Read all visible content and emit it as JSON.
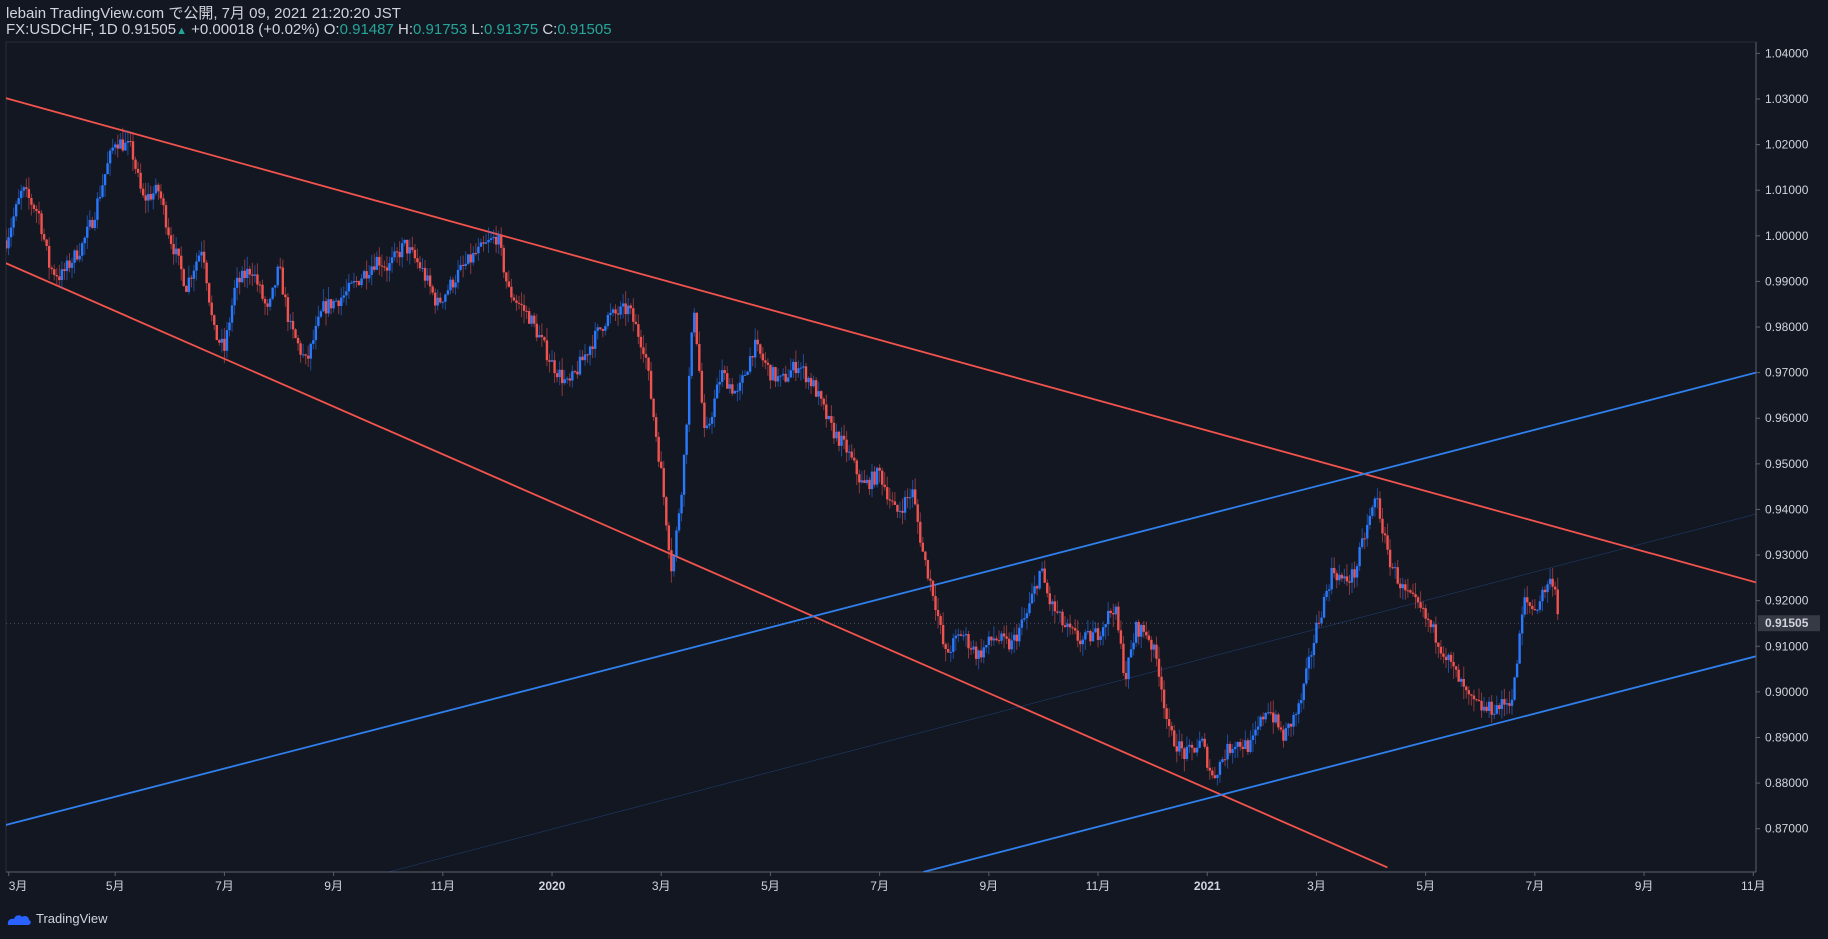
{
  "header": {
    "published": "lebain TradingView.com で公開, 7月 09, 2021 21:20:20 JST",
    "symbol": "FX:USDCHF, 1D",
    "price": "0.91505",
    "arrow": "▲",
    "change": "+0.00018 (+0.02%)",
    "o_label": "O:",
    "o_value": "0.91487",
    "h_label": "H:",
    "h_value": "0.91753",
    "l_label": "L:",
    "l_value": "0.91375",
    "c_label": "C:",
    "c_value": "0.91505"
  },
  "footer": {
    "brand": "TradingView",
    "logo_icon": "tradingview-logo-icon"
  },
  "colors": {
    "background": "#131722",
    "up": "#2979ff",
    "down": "#ef5350",
    "red_line": "#f2544d",
    "blue_line": "#2f80ed",
    "price_tag": "#363a45"
  },
  "chart_data": {
    "type": "candlestick",
    "symbol": "FX:USDCHF",
    "interval": "1D",
    "last_price": 0.91505,
    "price_label": "0.91505",
    "ylim": [
      0.8605,
      1.0425
    ],
    "y_ticks": [
      {
        "value": 1.04,
        "label": "1.04000"
      },
      {
        "value": 1.03,
        "label": "1.03000"
      },
      {
        "value": 1.02,
        "label": "1.02000"
      },
      {
        "value": 1.01,
        "label": "1.01000"
      },
      {
        "value": 1.0,
        "label": "1.00000"
      },
      {
        "value": 0.99,
        "label": "0.99000"
      },
      {
        "value": 0.98,
        "label": "0.98000"
      },
      {
        "value": 0.97,
        "label": "0.97000"
      },
      {
        "value": 0.96,
        "label": "0.96000"
      },
      {
        "value": 0.95,
        "label": "0.95000"
      },
      {
        "value": 0.94,
        "label": "0.94000"
      },
      {
        "value": 0.93,
        "label": "0.93000"
      },
      {
        "value": 0.92,
        "label": "0.92000"
      },
      {
        "value": 0.91,
        "label": "0.91000"
      },
      {
        "value": 0.9,
        "label": "0.90000"
      },
      {
        "value": 0.89,
        "label": "0.89000"
      },
      {
        "value": 0.88,
        "label": "0.88000"
      },
      {
        "value": 0.87,
        "label": "0.87000"
      }
    ],
    "time_range": [
      0,
      32.05
    ],
    "x_ticks": [
      {
        "t": 0.05,
        "label": "3月",
        "bold": false
      },
      {
        "t": 2,
        "label": "5月",
        "bold": false
      },
      {
        "t": 4,
        "label": "7月",
        "bold": false
      },
      {
        "t": 6,
        "label": "9月",
        "bold": false
      },
      {
        "t": 8,
        "label": "11月",
        "bold": false
      },
      {
        "t": 10,
        "label": "2020",
        "bold": true
      },
      {
        "t": 12,
        "label": "3月",
        "bold": false
      },
      {
        "t": 14,
        "label": "5月",
        "bold": false
      },
      {
        "t": 16,
        "label": "7月",
        "bold": false
      },
      {
        "t": 18,
        "label": "9月",
        "bold": false
      },
      {
        "t": 20,
        "label": "11月",
        "bold": false
      },
      {
        "t": 22,
        "label": "2021",
        "bold": true
      },
      {
        "t": 24,
        "label": "3月",
        "bold": false
      },
      {
        "t": 26,
        "label": "5月",
        "bold": false
      },
      {
        "t": 28,
        "label": "7月",
        "bold": false
      },
      {
        "t": 30,
        "label": "9月",
        "bold": false
      },
      {
        "t": 32,
        "label": "11月",
        "bold": false
      }
    ],
    "price_path": [
      [
        0.0,
        0.999
      ],
      [
        0.3,
        1.01
      ],
      [
        0.6,
        1.005
      ],
      [
        0.8,
        0.993
      ],
      [
        1.0,
        0.991
      ],
      [
        1.4,
        0.998
      ],
      [
        1.6,
        1.004
      ],
      [
        1.8,
        1.013
      ],
      [
        2.0,
        1.021
      ],
      [
        2.3,
        1.019
      ],
      [
        2.5,
        1.008
      ],
      [
        2.8,
        1.01
      ],
      [
        3.0,
        1.0
      ],
      [
        3.3,
        0.989
      ],
      [
        3.6,
        0.998
      ],
      [
        3.8,
        0.979
      ],
      [
        4.0,
        0.975
      ],
      [
        4.2,
        0.989
      ],
      [
        4.5,
        0.993
      ],
      [
        4.8,
        0.983
      ],
      [
        5.0,
        0.993
      ],
      [
        5.2,
        0.98
      ],
      [
        5.5,
        0.972
      ],
      [
        5.8,
        0.984
      ],
      [
        6.2,
        0.987
      ],
      [
        6.5,
        0.991
      ],
      [
        6.8,
        0.995
      ],
      [
        7.0,
        0.993
      ],
      [
        7.3,
        0.998
      ],
      [
        7.6,
        0.993
      ],
      [
        7.9,
        0.985
      ],
      [
        8.3,
        0.992
      ],
      [
        8.6,
        0.996
      ],
      [
        9.0,
        1.0
      ],
      [
        9.2,
        0.988
      ],
      [
        9.6,
        0.982
      ],
      [
        10.0,
        0.972
      ],
      [
        10.3,
        0.967
      ],
      [
        10.7,
        0.976
      ],
      [
        11.0,
        0.982
      ],
      [
        11.4,
        0.984
      ],
      [
        11.7,
        0.975
      ],
      [
        12.0,
        0.948
      ],
      [
        12.2,
        0.926
      ],
      [
        12.4,
        0.948
      ],
      [
        12.6,
        0.985
      ],
      [
        12.8,
        0.955
      ],
      [
        13.1,
        0.97
      ],
      [
        13.4,
        0.965
      ],
      [
        13.7,
        0.976
      ],
      [
        14.0,
        0.97
      ],
      [
        14.2,
        0.968
      ],
      [
        14.5,
        0.972
      ],
      [
        14.8,
        0.967
      ],
      [
        15.1,
        0.958
      ],
      [
        15.4,
        0.953
      ],
      [
        15.7,
        0.945
      ],
      [
        16.0,
        0.948
      ],
      [
        16.3,
        0.939
      ],
      [
        16.6,
        0.944
      ],
      [
        16.8,
        0.93
      ],
      [
        17.0,
        0.921
      ],
      [
        17.2,
        0.908
      ],
      [
        17.5,
        0.913
      ],
      [
        17.8,
        0.908
      ],
      [
        18.1,
        0.912
      ],
      [
        18.4,
        0.91
      ],
      [
        18.7,
        0.917
      ],
      [
        18.95,
        0.927
      ],
      [
        19.1,
        0.92
      ],
      [
        19.4,
        0.914
      ],
      [
        19.7,
        0.911
      ],
      [
        20.0,
        0.913
      ],
      [
        20.3,
        0.919
      ],
      [
        20.5,
        0.903
      ],
      [
        20.7,
        0.914
      ],
      [
        20.9,
        0.913
      ],
      [
        21.1,
        0.906
      ],
      [
        21.3,
        0.891
      ],
      [
        21.6,
        0.886
      ],
      [
        21.9,
        0.889
      ],
      [
        22.1,
        0.881
      ],
      [
        22.3,
        0.886
      ],
      [
        22.5,
        0.889
      ],
      [
        22.8,
        0.888
      ],
      [
        23.1,
        0.897
      ],
      [
        23.4,
        0.89
      ],
      [
        23.7,
        0.897
      ],
      [
        24.0,
        0.914
      ],
      [
        24.3,
        0.927
      ],
      [
        24.5,
        0.924
      ],
      [
        24.7,
        0.926
      ],
      [
        24.9,
        0.935
      ],
      [
        25.1,
        0.943
      ],
      [
        25.3,
        0.93
      ],
      [
        25.6,
        0.922
      ],
      [
        25.9,
        0.918
      ],
      [
        26.2,
        0.912
      ],
      [
        26.5,
        0.905
      ],
      [
        26.8,
        0.898
      ],
      [
        27.1,
        0.896
      ],
      [
        27.4,
        0.897
      ],
      [
        27.6,
        0.899
      ],
      [
        27.8,
        0.92
      ],
      [
        28.0,
        0.918
      ],
      [
        28.2,
        0.923
      ],
      [
        28.35,
        0.925
      ],
      [
        28.45,
        0.915
      ]
    ],
    "trendlines": [
      {
        "name": "upper-red-trendline",
        "color": "red",
        "from": [
          -0.1,
          1.0305
        ],
        "to": [
          32.05,
          0.924
        ],
        "width": 1.8
      },
      {
        "name": "lower-red-trendline",
        "color": "red",
        "from": [
          -0.1,
          0.9945
        ],
        "to": [
          25.3,
          0.8615
        ],
        "width": 1.8
      },
      {
        "name": "upper-blue-trendline",
        "color": "blue",
        "from": [
          -0.1,
          0.8705
        ],
        "to": [
          32.05,
          0.97
        ],
        "width": 1.8
      },
      {
        "name": "lower-blue-trendline",
        "color": "blue",
        "from": [
          16.8,
          0.8605
        ],
        "to": [
          32.05,
          0.9078
        ],
        "width": 1.8
      },
      {
        "name": "faint-mid-trendline",
        "color": "blue",
        "from": [
          7.0,
          0.8605
        ],
        "to": [
          32.05,
          0.939
        ],
        "width": 0.6,
        "opacity": 0.35
      }
    ]
  }
}
